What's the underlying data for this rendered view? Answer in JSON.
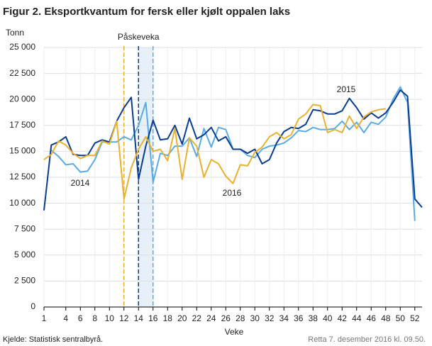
{
  "chart_data": {
    "type": "line",
    "title": "Figur 2. Eksportkvantum for fersk eller kjølt oppalen laks",
    "y_label": "Tonn",
    "x_label": "Veke",
    "source": "Kjelde: Statistisk sentralbyrå.",
    "note": "Retta 7. desember 2016 kl. 09.50.",
    "x": [
      1,
      2,
      3,
      4,
      5,
      6,
      7,
      8,
      9,
      10,
      11,
      12,
      13,
      14,
      15,
      16,
      17,
      18,
      19,
      20,
      21,
      22,
      23,
      24,
      25,
      26,
      27,
      28,
      29,
      30,
      31,
      32,
      33,
      34,
      35,
      36,
      37,
      38,
      39,
      40,
      41,
      42,
      43,
      44,
      45,
      46,
      47,
      48,
      49,
      50,
      51,
      52,
      53
    ],
    "xlim": [
      1,
      53
    ],
    "xticks": [
      1,
      4,
      6,
      8,
      10,
      12,
      14,
      16,
      18,
      20,
      22,
      24,
      26,
      28,
      30,
      32,
      34,
      36,
      38,
      40,
      42,
      44,
      46,
      48,
      50,
      52
    ],
    "ylim": [
      0,
      25000
    ],
    "yticks": [
      0,
      {
        "value": 2500,
        "label": "2 500"
      },
      {
        "value": 5000,
        "label": "5 000"
      },
      {
        "value": 7500,
        "label": "7 500"
      },
      {
        "value": 10000,
        "label": "10 000"
      },
      {
        "value": 12500,
        "label": "12 500"
      },
      {
        "value": 15000,
        "label": "15 000"
      },
      {
        "value": 17500,
        "label": "17 500"
      },
      {
        "value": 20000,
        "label": "20 000"
      },
      {
        "value": 22500,
        "label": "22 500"
      },
      {
        "value": 25000,
        "label": "25 000"
      }
    ],
    "grid": true,
    "series": [
      {
        "name": "2014",
        "color": "#5aabe5",
        "values": [
          null,
          15100,
          14500,
          13700,
          13800,
          13000,
          13100,
          14200,
          15900,
          15900,
          15900,
          16400,
          16100,
          17500,
          19700,
          12000,
          14800,
          14600,
          15500,
          15500,
          16300,
          14500,
          17200,
          15400,
          17300,
          17100,
          15200,
          15200,
          14600,
          14400,
          15200,
          15500,
          15600,
          15800,
          16300,
          17000,
          16900,
          17300,
          17100,
          17100,
          17200,
          17900,
          17100,
          17800,
          16800,
          17800,
          17600,
          18300,
          20000,
          21200,
          19700,
          8300,
          null
        ]
      },
      {
        "name": "2015",
        "color": "#0a3d8f",
        "values": [
          9300,
          15600,
          15900,
          16400,
          14700,
          14600,
          14600,
          15800,
          16100,
          15900,
          17900,
          19200,
          20200,
          12300,
          15500,
          18000,
          16100,
          16200,
          17500,
          15700,
          18200,
          16200,
          16600,
          17300,
          16000,
          16400,
          15200,
          15200,
          14800,
          15200,
          13800,
          14200,
          15800,
          16900,
          17300,
          17200,
          17600,
          19000,
          18900,
          18600,
          18600,
          18900,
          20100,
          19200,
          18100,
          18700,
          18200,
          18700,
          19700,
          20900,
          20300,
          10400,
          9600
        ]
      },
      {
        "name": "2016",
        "color": "#e8b130",
        "values": [
          14200,
          14700,
          16000,
          15600,
          14800,
          14300,
          14600,
          14600,
          16000,
          15700,
          17900,
          10400,
          13400,
          15200,
          16400,
          15000,
          15200,
          14100,
          17200,
          12300,
          16300,
          15500,
          12500,
          14200,
          13800,
          12600,
          11900,
          13700,
          13600,
          14900,
          15400,
          16400,
          16800,
          16200,
          16600,
          18100,
          18600,
          19500,
          19400,
          16800,
          17100,
          16800,
          18400,
          17200,
          18300,
          18800,
          19000,
          19100,
          null,
          null,
          null,
          null,
          null
        ]
      }
    ],
    "vline_label": "Påskeveka",
    "shade": [
      14,
      16
    ],
    "vlines": [
      {
        "x": 12,
        "color": "#e8b130"
      },
      {
        "x": 14,
        "color": "#0a3d8f"
      },
      {
        "x": 16,
        "color": "#5aabe5"
      }
    ]
  }
}
